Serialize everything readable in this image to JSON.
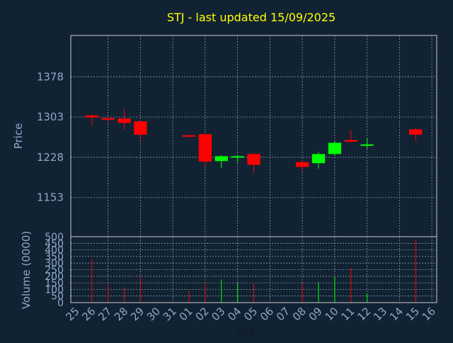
{
  "colors": {
    "background": "#112233",
    "title": "#ffff00",
    "axis_text": "#8fa8c8",
    "frame": "#cccccc",
    "grid": "#8899aa",
    "up": "#00ff00",
    "down": "#ff0000"
  },
  "chart_data": {
    "type": "candlestick",
    "title": "STJ - last updated 15/09/2025",
    "price_panel": {
      "ylabel": "Price",
      "yticks": [
        1153,
        1228,
        1303,
        1378
      ],
      "ylim": [
        1080,
        1455
      ],
      "grid": true
    },
    "volume_panel": {
      "ylabel": "Volume (0000)",
      "yticks": [
        0,
        50,
        100,
        150,
        200,
        250,
        300,
        350,
        400,
        450,
        500
      ],
      "ylim": [
        0,
        500
      ],
      "grid": true
    },
    "xlabel": "Day",
    "x_tick_labels": [
      "25",
      "26",
      "27",
      "28",
      "29",
      "30",
      "31",
      "01",
      "02",
      "03",
      "04",
      "05",
      "06",
      "07",
      "08",
      "09",
      "10",
      "11",
      "12",
      "13",
      "14",
      "15",
      "16"
    ],
    "candles": [
      {
        "day": "26",
        "open": 1306,
        "high": 1308,
        "low": 1287,
        "close": 1302,
        "volume": 330
      },
      {
        "day": "27",
        "open": 1301,
        "high": 1303,
        "low": 1293,
        "close": 1298,
        "volume": 140
      },
      {
        "day": "28",
        "open": 1300,
        "high": 1318,
        "low": 1280,
        "close": 1292,
        "volume": 110
      },
      {
        "day": "29",
        "open": 1295,
        "high": 1296,
        "low": 1258,
        "close": 1270,
        "volume": 200
      },
      {
        "day": "01",
        "open": 1269,
        "high": 1271,
        "low": 1265,
        "close": 1267,
        "volume": 90
      },
      {
        "day": "02",
        "open": 1271,
        "high": 1271,
        "low": 1213,
        "close": 1220,
        "volume": 150
      },
      {
        "day": "03",
        "open": 1221,
        "high": 1232,
        "low": 1208,
        "close": 1230,
        "volume": 175
      },
      {
        "day": "04",
        "open": 1229,
        "high": 1232,
        "low": 1218,
        "close": 1230,
        "volume": 150
      },
      {
        "day": "05",
        "open": 1234,
        "high": 1236,
        "low": 1198,
        "close": 1214,
        "volume": 140
      },
      {
        "day": "08",
        "open": 1219,
        "high": 1222,
        "low": 1203,
        "close": 1210,
        "volume": 145
      },
      {
        "day": "09",
        "open": 1217,
        "high": 1238,
        "low": 1207,
        "close": 1234,
        "volume": 155
      },
      {
        "day": "10",
        "open": 1234,
        "high": 1257,
        "low": 1232,
        "close": 1255,
        "volume": 195
      },
      {
        "day": "11",
        "open": 1260,
        "high": 1279,
        "low": 1255,
        "close": 1257,
        "volume": 265
      },
      {
        "day": "12",
        "open": 1250,
        "high": 1264,
        "low": 1244,
        "close": 1252,
        "volume": 70
      },
      {
        "day": "15",
        "open": 1280,
        "high": 1282,
        "low": 1258,
        "close": 1270,
        "volume": 480
      }
    ]
  }
}
